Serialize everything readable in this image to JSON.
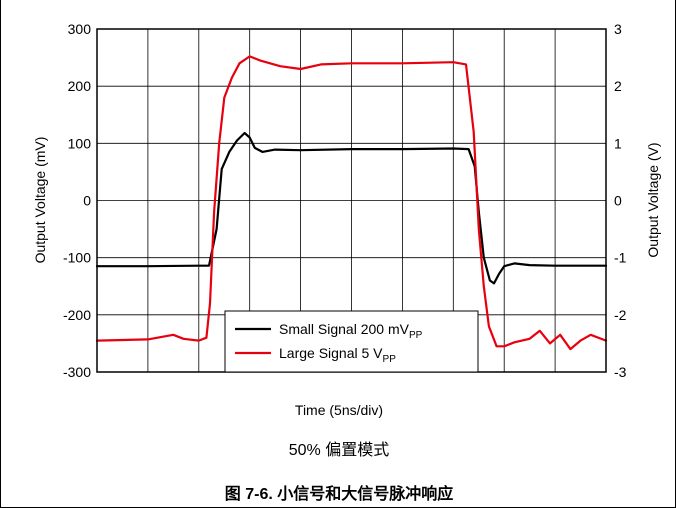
{
  "chart_data": {
    "type": "line",
    "xlabel": "Time (5ns/div)",
    "ylabel_left": "Output Voltage (mV)",
    "ylabel_right": "Output Voltage (V)",
    "ylim_left": [
      -300,
      300
    ],
    "ylim_right": [
      -3,
      3
    ],
    "yticks_left": [
      "300",
      "200",
      "100",
      "0",
      "-100",
      "-200",
      "-300"
    ],
    "yticks_right": [
      "3",
      "2",
      "1",
      "0",
      "-1",
      "-2",
      "-3"
    ],
    "x_divisions": 10,
    "grid": true,
    "legend_position": "bottom-center",
    "series": [
      {
        "name_main": "Small Signal 200 mV",
        "name_sub": "PP",
        "axis": "left",
        "color": "#000000",
        "x": [
          0,
          1,
          2,
          2.2,
          2.35,
          2.45,
          2.6,
          2.75,
          2.9,
          3.0,
          3.1,
          3.25,
          3.5,
          4,
          5,
          6,
          7,
          7.3,
          7.42,
          7.5,
          7.6,
          7.72,
          7.8,
          7.9,
          8.0,
          8.2,
          8.5,
          9,
          10
        ],
        "y": [
          -115,
          -115,
          -114,
          -114,
          -50,
          55,
          85,
          105,
          118,
          110,
          92,
          85,
          89,
          88,
          90,
          90,
          91,
          90,
          60,
          -20,
          -100,
          -140,
          -145,
          -128,
          -115,
          -110,
          -113,
          -114,
          -114
        ]
      },
      {
        "name_main": "Large Signal 5 V",
        "name_sub": "PP",
        "axis": "right",
        "color": "#e8000f",
        "x": [
          0,
          1,
          1.5,
          1.7,
          2.0,
          2.15,
          2.22,
          2.3,
          2.4,
          2.5,
          2.65,
          2.8,
          3.0,
          3.2,
          3.6,
          4.0,
          4.4,
          5,
          6,
          7,
          7.25,
          7.4,
          7.5,
          7.6,
          7.7,
          7.85,
          8.0,
          8.2,
          8.5,
          8.7,
          8.9,
          9.1,
          9.3,
          9.5,
          9.7,
          10
        ],
        "y": [
          -2.45,
          -2.43,
          -2.35,
          -2.42,
          -2.45,
          -2.4,
          -1.8,
          -0.2,
          1.0,
          1.8,
          2.15,
          2.4,
          2.52,
          2.45,
          2.35,
          2.3,
          2.38,
          2.4,
          2.4,
          2.42,
          2.38,
          1.2,
          -0.5,
          -1.5,
          -2.2,
          -2.55,
          -2.55,
          -2.48,
          -2.42,
          -2.28,
          -2.5,
          -2.35,
          -2.6,
          -2.45,
          -2.35,
          -2.45
        ]
      }
    ]
  },
  "mode_text": "50% 偏置模式",
  "caption": "图 7-6. 小信号和大信号脉冲响应"
}
